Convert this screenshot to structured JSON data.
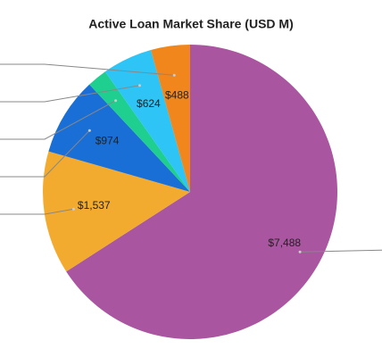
{
  "chart_data": {
    "type": "pie",
    "title": "Active Loan Market Share (USD M)",
    "values": [
      7488,
      1537,
      974,
      250,
      624,
      488
    ],
    "value_labels": [
      "$7,488",
      "$1,537",
      "$974",
      null,
      "$624",
      "$488"
    ],
    "colors": [
      "#a9559f",
      "#f2ab2f",
      "#1a6fd6",
      "#1fcf8f",
      "#2ec4f5",
      "#f0861c"
    ]
  }
}
